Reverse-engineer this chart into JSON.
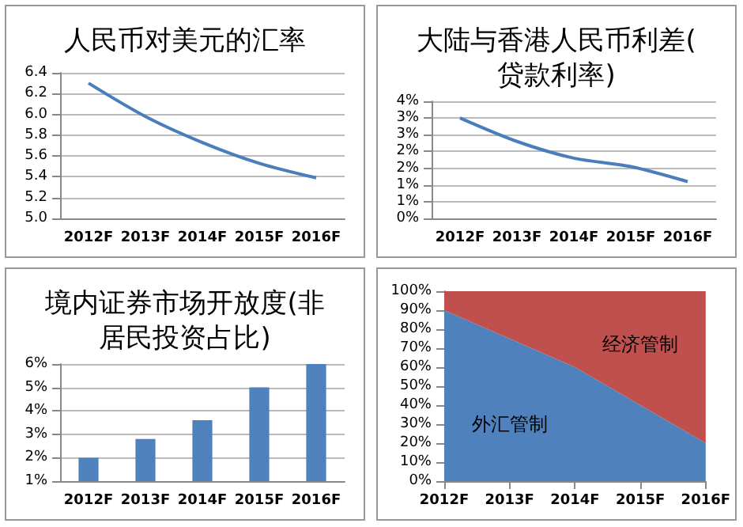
{
  "chart_data": [
    {
      "type": "line",
      "title": "人民币对美元的汇率",
      "categories": [
        "2012F",
        "2013F",
        "2014F",
        "2015F",
        "2016F"
      ],
      "series": [
        {
          "color": "#4a7ebb",
          "values": [
            6.3,
            5.98,
            5.73,
            5.53,
            5.39
          ]
        }
      ],
      "ylim": [
        5.0,
        6.4
      ],
      "yticks": [
        {
          "value": 5.0,
          "label": "5.0"
        },
        5.2,
        5.4,
        5.6,
        5.8,
        {
          "value": 6.0,
          "label": "6.0"
        },
        6.2,
        6.4
      ],
      "grid": "y",
      "marker": "none"
    },
    {
      "type": "line",
      "title": "大陆与香港人民币利差(贷款利率)",
      "categories": [
        "2012F",
        "2013F",
        "2014F",
        "2015F",
        "2016F"
      ],
      "series": [
        {
          "color": "#4a7ebb",
          "values": [
            3.0,
            2.3,
            1.8,
            1.55,
            1.1
          ]
        }
      ],
      "ylim": [
        0,
        3.5
      ],
      "yticks": [
        {
          "value": 0,
          "label": "0%"
        },
        {
          "value": 0.5,
          "label": "1%"
        },
        {
          "value": 1,
          "label": "1%"
        },
        {
          "value": 1.5,
          "label": "2%"
        },
        {
          "value": 2,
          "label": "2%"
        },
        {
          "value": 2.5,
          "label": "3%"
        },
        {
          "value": 3,
          "label": "3%"
        },
        {
          "value": 3.5,
          "label": "4%"
        }
      ],
      "grid": "y",
      "marker": "none"
    },
    {
      "type": "bar",
      "title": "境内证券市场开放度(非居民投资占比)",
      "categories": [
        "2012F",
        "2013F",
        "2014F",
        "2015F",
        "2016F"
      ],
      "series": [
        {
          "color": "#4f81bd",
          "values": [
            2.0,
            2.8,
            3.6,
            5.0,
            6.0
          ]
        }
      ],
      "ylim": [
        1,
        6
      ],
      "yticks": [
        {
          "value": 1,
          "label": "1%"
        },
        {
          "value": 2,
          "label": "2%"
        },
        {
          "value": 3,
          "label": "3%"
        },
        {
          "value": 4,
          "label": "4%"
        },
        {
          "value": 5,
          "label": "5%"
        },
        {
          "value": 6,
          "label": "6%"
        }
      ],
      "grid": "y"
    },
    {
      "type": "area",
      "stacked": true,
      "categories": [
        "2012F",
        "2013F",
        "2014F",
        "2015F",
        "2016F"
      ],
      "series": [
        {
          "name": "外汇管制",
          "color": "#4f81bd",
          "values": [
            90,
            75,
            60,
            40,
            20
          ]
        },
        {
          "name": "经济管制",
          "color": "#c0504d",
          "values": [
            10,
            25,
            40,
            60,
            80
          ]
        }
      ],
      "ylim": [
        0,
        100
      ],
      "yticks": [
        {
          "value": 0,
          "label": "0%"
        },
        {
          "value": 10,
          "label": "10%"
        },
        {
          "value": 20,
          "label": "20%"
        },
        {
          "value": 30,
          "label": "30%"
        },
        {
          "value": 40,
          "label": "40%"
        },
        {
          "value": 50,
          "label": "50%"
        },
        {
          "value": 60,
          "label": "60%"
        },
        {
          "value": 70,
          "label": "70%"
        },
        {
          "value": 80,
          "label": "80%"
        },
        {
          "value": 90,
          "label": "90%"
        },
        {
          "value": 100,
          "label": "100%"
        }
      ],
      "grid": false
    }
  ]
}
